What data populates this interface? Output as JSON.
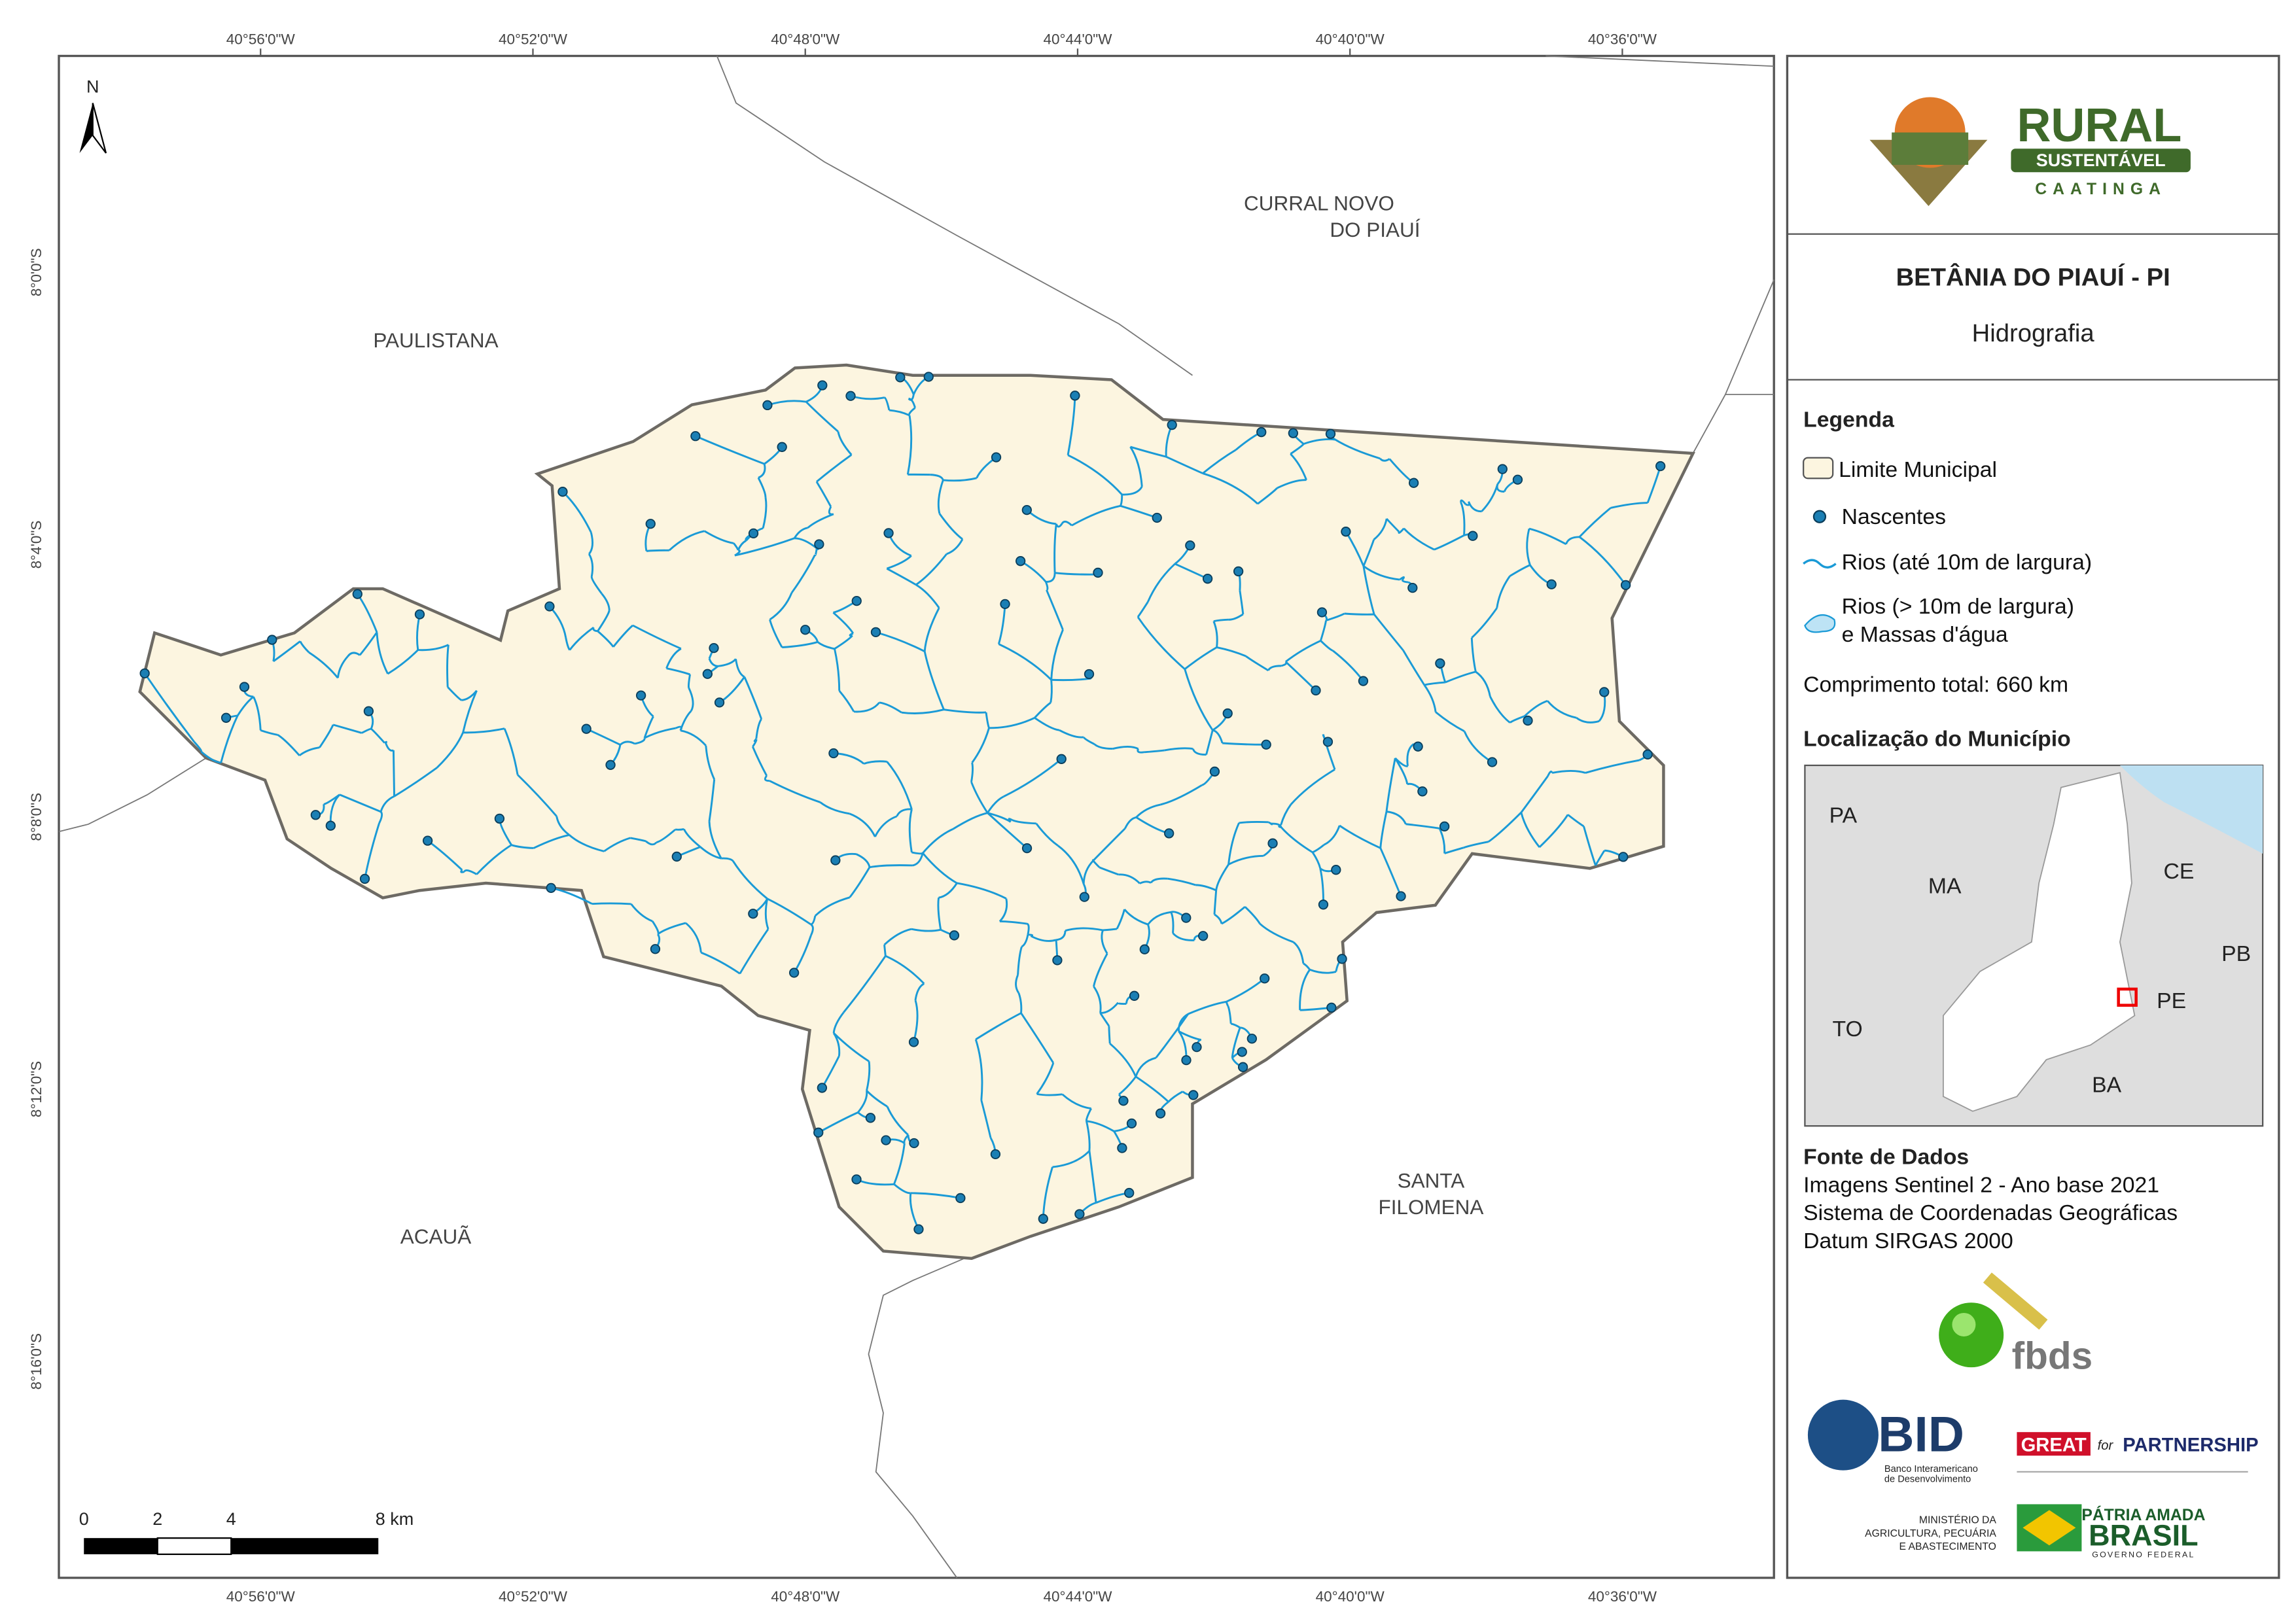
{
  "map": {
    "lon_labels": [
      "40°56'0\"W",
      "40°52'0\"W",
      "40°48'0\"W",
      "40°44'0\"W",
      "40°40'0\"W",
      "40°36'0\"W"
    ],
    "lat_labels": [
      "8°0'0\"S",
      "8°4'0\"S",
      "8°8'0\"S",
      "8°12'0\"S",
      "8°16'0\"S"
    ],
    "places": [
      "CURRAL NOVO",
      "DO PIAUÍ",
      "PAULISTANA",
      "ACAUÃ",
      "SANTA",
      "FILOMENA"
    ],
    "north": "N",
    "scale": [
      "0",
      "2",
      "4",
      "8 km"
    ]
  },
  "sidebar": {
    "logo": {
      "line1": "RURAL",
      "line2": "SUSTENTÁVEL",
      "line3": "CAATINGA"
    },
    "title": "BETÂNIA DO PIAUÍ - PI",
    "subtitle": "Hidrografia",
    "legend": {
      "title": "Legenda",
      "items": [
        "Limite Municipal",
        "Nascentes",
        "Rios (até 10m de largura)",
        "Rios (> 10m de largura)",
        "e Massas d'água"
      ],
      "total": "Comprimento total:  660 km"
    },
    "location": {
      "title": "Localização do Município",
      "labels": [
        "PA",
        "MA",
        "CE",
        "PB",
        "PE",
        "TO",
        "BA"
      ]
    },
    "sources": {
      "title": "Fonte de Dados",
      "lines": [
        "Imagens Sentinel 2 - Ano base 2021",
        "Sistema de Coordenadas Geográficas",
        "Datum SIRGAS 2000"
      ]
    },
    "logos": {
      "fbds": "fbds",
      "bid": "BID",
      "bid_sub": [
        "Banco Interamericano",
        "de Desenvolvimento"
      ],
      "great": "GREAT",
      "great_for": "for",
      "partnership": "PARTNERSHIP",
      "ministry": [
        "MINISTÉRIO DA",
        "AGRICULTURA, PECUÁRIA",
        "E ABASTECIMENTO"
      ],
      "patria": "PÁTRIA AMADA",
      "brasil": "BRASIL",
      "gov": "GOVERNO FEDERAL"
    }
  }
}
